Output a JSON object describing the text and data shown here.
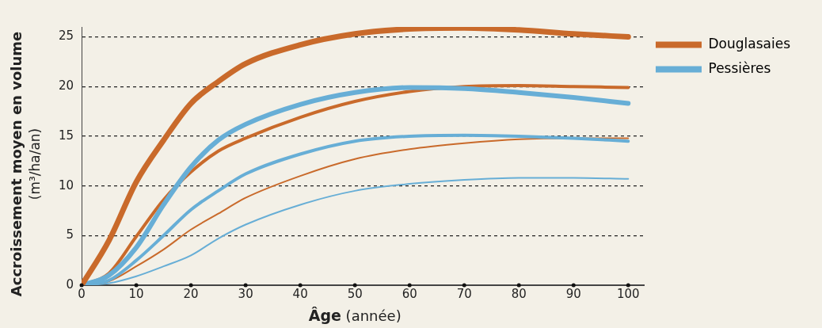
{
  "chart_data": {
    "type": "line",
    "xlabel": "Âge (année)",
    "ylabel": "Accroissement moyen en volume\n(m³/ha/an)",
    "x": [
      0,
      5,
      10,
      15,
      20,
      25,
      30,
      40,
      50,
      60,
      70,
      80,
      90,
      100
    ],
    "series": [
      {
        "name": "Douglasaies",
        "color": "#c96a2b",
        "values": [
          0,
          4.5,
          10.4,
          14.6,
          18.3,
          20.5,
          22.3,
          24.2,
          25.3,
          25.8,
          25.9,
          25.7,
          25.3,
          25.0
        ]
      },
      {
        "name": "Pessières",
        "color": "#67aed6",
        "values": [
          0,
          1.0,
          3.8,
          8.1,
          11.9,
          14.6,
          16.2,
          18.2,
          19.4,
          19.9,
          19.8,
          19.4,
          18.9,
          18.3
        ]
      },
      {
        "color": "#c96a2b",
        "values": [
          0,
          1.2,
          4.9,
          8.6,
          11.4,
          13.5,
          14.8,
          16.9,
          18.5,
          19.5,
          20.0,
          20.1,
          20.0,
          19.9
        ]
      },
      {
        "color": "#67aed6",
        "values": [
          0,
          0.5,
          2.5,
          5.0,
          7.6,
          9.5,
          11.2,
          13.2,
          14.5,
          15.0,
          15.1,
          15.0,
          14.8,
          14.5
        ]
      },
      {
        "color": "#c96a2b",
        "values": [
          0,
          0.4,
          1.9,
          3.6,
          5.6,
          7.2,
          8.8,
          11.0,
          12.7,
          13.7,
          14.3,
          14.7,
          14.8,
          14.8
        ]
      },
      {
        "color": "#67aed6",
        "values": [
          0,
          0.2,
          0.9,
          1.9,
          3.0,
          4.7,
          6.1,
          8.1,
          9.5,
          10.2,
          10.6,
          10.8,
          10.8,
          10.7
        ]
      }
    ],
    "xlim": [
      0,
      103
    ],
    "xticks": [
      0,
      10,
      20,
      30,
      40,
      50,
      60,
      70,
      80,
      90,
      100
    ],
    "ylim": [
      0,
      26
    ],
    "yticks": [
      0,
      5,
      10,
      15,
      20,
      25
    ],
    "grid": "y",
    "legend": "top right",
    "marker": "none",
    "line_style": "solid"
  }
}
